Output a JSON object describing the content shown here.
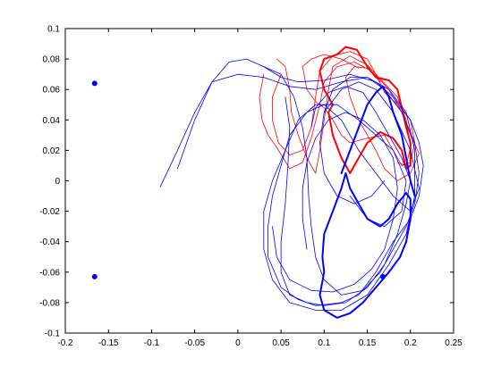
{
  "chart_data": {
    "type": "line",
    "title": "",
    "xlabel": "",
    "ylabel": "",
    "xlim": [
      -0.2,
      0.25
    ],
    "ylim": [
      -0.1,
      0.1
    ],
    "grid": false,
    "xticks": [
      "-0.2",
      "-0.15",
      "-0.1",
      "-0.05",
      "0",
      "0.05",
      "0.1",
      "0.15",
      "0.2",
      "0.25"
    ],
    "yticks": [
      "0.1",
      "0.08",
      "0.06",
      "0.04",
      "0.02",
      "0",
      "-0.02",
      "-0.04",
      "-0.06",
      "-0.08",
      "-0.1"
    ],
    "colors": {
      "blue": "#0000ff",
      "red": "#ff0000",
      "axis": "#000000"
    },
    "points": [
      {
        "x": -0.166,
        "y": 0.064,
        "color": "blue"
      },
      {
        "x": -0.166,
        "y": -0.063,
        "color": "blue"
      },
      {
        "x": 0.168,
        "y": -0.063,
        "color": "blue"
      }
    ],
    "series": [
      {
        "color": "red",
        "width": 0.8,
        "values": [
          [
            0.05,
            0.07
          ],
          [
            0.04,
            0.055
          ],
          [
            0.04,
            0.04
          ],
          [
            0.047,
            0.025
          ],
          [
            0.06,
            0.017
          ],
          [
            0.075,
            0.02
          ],
          [
            0.085,
            0.035
          ],
          [
            0.09,
            0.055
          ],
          [
            0.095,
            0.072
          ],
          [
            0.11,
            0.082
          ],
          [
            0.13,
            0.085
          ],
          [
            0.15,
            0.08
          ],
          [
            0.16,
            0.07
          ],
          [
            0.17,
            0.058
          ],
          [
            0.185,
            0.05
          ],
          [
            0.2,
            0.04
          ],
          [
            0.205,
            0.025
          ],
          [
            0.2,
            0.012
          ],
          [
            0.19,
            0.01
          ],
          [
            0.18,
            0.02
          ],
          [
            0.17,
            0.03
          ],
          [
            0.15,
            0.028
          ],
          [
            0.13,
            0.025
          ],
          [
            0.12,
            0.03
          ],
          [
            0.11,
            0.04
          ],
          [
            0.1,
            0.048
          ],
          [
            0.09,
            0.052
          ],
          [
            0.08,
            0.06
          ],
          [
            0.075,
            0.075
          ],
          [
            0.085,
            0.08
          ],
          [
            0.1,
            0.083
          ],
          [
            0.12,
            0.08
          ],
          [
            0.14,
            0.074
          ]
        ]
      },
      {
        "color": "red",
        "width": 0.8,
        "values": [
          [
            0.03,
            0.07
          ],
          [
            0.025,
            0.055
          ],
          [
            0.028,
            0.04
          ],
          [
            0.035,
            0.03
          ],
          [
            0.045,
            0.022
          ],
          [
            0.06,
            0.008
          ],
          [
            0.075,
            0.012
          ],
          [
            0.085,
            0.028
          ],
          [
            0.095,
            0.05
          ],
          [
            0.1,
            0.065
          ],
          [
            0.115,
            0.075
          ],
          [
            0.135,
            0.078
          ],
          [
            0.155,
            0.072
          ],
          [
            0.175,
            0.06
          ],
          [
            0.19,
            0.045
          ],
          [
            0.2,
            0.03
          ],
          [
            0.21,
            0.018
          ],
          [
            0.2,
            0.005
          ],
          [
            0.185,
            0.0
          ],
          [
            0.17,
            0.008
          ],
          [
            0.16,
            0.02
          ],
          [
            0.15,
            0.03
          ],
          [
            0.14,
            0.04
          ],
          [
            0.13,
            0.055
          ],
          [
            0.125,
            0.068
          ],
          [
            0.135,
            0.075
          ],
          [
            0.15,
            0.074
          ],
          [
            0.165,
            0.065
          ]
        ]
      },
      {
        "color": "red",
        "width": 0.8,
        "values": [
          [
            0.045,
            0.08
          ],
          [
            0.055,
            0.075
          ],
          [
            0.06,
            0.06
          ],
          [
            0.062,
            0.045
          ],
          [
            0.07,
            0.03
          ],
          [
            0.08,
            0.015
          ],
          [
            0.09,
            0.005
          ],
          [
            0.095,
            0.02
          ],
          [
            0.1,
            0.04
          ],
          [
            0.105,
            0.06
          ],
          [
            0.11,
            0.075
          ],
          [
            0.13,
            0.082
          ],
          [
            0.15,
            0.076
          ],
          [
            0.17,
            0.064
          ],
          [
            0.185,
            0.055
          ],
          [
            0.195,
            0.04
          ],
          [
            0.2,
            0.022
          ],
          [
            0.195,
            0.01
          ],
          [
            0.185,
            0.012
          ]
        ]
      },
      {
        "color": "red",
        "width": 2,
        "values": [
          [
            0.11,
            0.05
          ],
          [
            0.1,
            0.06
          ],
          [
            0.095,
            0.072
          ],
          [
            0.1,
            0.08
          ],
          [
            0.115,
            0.083
          ],
          [
            0.125,
            0.088
          ],
          [
            0.138,
            0.086
          ],
          [
            0.15,
            0.075
          ],
          [
            0.16,
            0.068
          ],
          [
            0.175,
            0.066
          ],
          [
            0.185,
            0.06
          ],
          [
            0.19,
            0.048
          ],
          [
            0.195,
            0.035
          ],
          [
            0.2,
            0.025
          ],
          [
            0.2,
            0.01
          ],
          [
            0.195,
            0.008
          ],
          [
            0.19,
            0.02
          ],
          [
            0.18,
            0.028
          ],
          [
            0.165,
            0.032
          ],
          [
            0.15,
            0.025
          ],
          [
            0.14,
            0.015
          ],
          [
            0.13,
            0.005
          ],
          [
            0.12,
            0.015
          ],
          [
            0.11,
            0.03
          ],
          [
            0.105,
            0.045
          ],
          [
            0.11,
            0.05
          ]
        ]
      },
      {
        "color": "blue",
        "width": 0.8,
        "values": [
          [
            -0.07,
            0.008
          ],
          [
            -0.05,
            0.04
          ],
          [
            -0.03,
            0.065
          ],
          [
            -0.01,
            0.078
          ],
          [
            0.01,
            0.08
          ],
          [
            0.03,
            0.075
          ],
          [
            0.05,
            0.068
          ],
          [
            0.07,
            0.065
          ],
          [
            0.1,
            0.066
          ],
          [
            0.13,
            0.07
          ],
          [
            0.16,
            0.065
          ],
          [
            0.18,
            0.055
          ],
          [
            0.2,
            0.04
          ],
          [
            0.21,
            0.025
          ],
          [
            0.215,
            0.01
          ],
          [
            0.21,
            -0.01
          ],
          [
            0.2,
            -0.025
          ],
          [
            0.18,
            -0.04
          ],
          [
            0.16,
            -0.06
          ],
          [
            0.14,
            -0.075
          ],
          [
            0.12,
            -0.08
          ],
          [
            0.09,
            -0.082
          ],
          [
            0.07,
            -0.078
          ],
          [
            0.05,
            -0.07
          ],
          [
            0.035,
            -0.05
          ],
          [
            0.035,
            -0.03
          ],
          [
            0.04,
            -0.01
          ],
          [
            0.05,
            0.01
          ],
          [
            0.06,
            0.03
          ],
          [
            0.08,
            0.045
          ],
          [
            0.1,
            0.05
          ],
          [
            0.12,
            0.04
          ],
          [
            0.14,
            0.02
          ],
          [
            0.16,
            0.005
          ],
          [
            0.18,
            -0.01
          ],
          [
            0.2,
            -0.02
          ],
          [
            0.21,
            -0.005
          ],
          [
            0.2,
            0.02
          ],
          [
            0.18,
            0.045
          ],
          [
            0.16,
            0.06
          ],
          [
            0.14,
            0.065
          ],
          [
            0.12,
            0.06
          ],
          [
            0.1,
            0.045
          ]
        ]
      },
      {
        "color": "blue",
        "width": 0.8,
        "values": [
          [
            -0.09,
            -0.004
          ],
          [
            -0.07,
            0.02
          ],
          [
            -0.05,
            0.045
          ],
          [
            -0.03,
            0.065
          ],
          [
            0.0,
            0.07
          ],
          [
            0.03,
            0.068
          ],
          [
            0.06,
            0.062
          ],
          [
            0.09,
            0.06
          ],
          [
            0.12,
            0.065
          ],
          [
            0.15,
            0.068
          ],
          [
            0.175,
            0.06
          ],
          [
            0.195,
            0.045
          ],
          [
            0.205,
            0.02
          ],
          [
            0.205,
            -0.01
          ],
          [
            0.195,
            -0.035
          ],
          [
            0.175,
            -0.055
          ],
          [
            0.15,
            -0.075
          ],
          [
            0.12,
            -0.085
          ],
          [
            0.09,
            -0.085
          ],
          [
            0.06,
            -0.08
          ],
          [
            0.04,
            -0.065
          ],
          [
            0.03,
            -0.045
          ],
          [
            0.03,
            -0.02
          ],
          [
            0.04,
            0.0
          ],
          [
            0.055,
            0.02
          ],
          [
            0.07,
            0.04
          ],
          [
            0.09,
            0.05
          ],
          [
            0.115,
            0.05
          ],
          [
            0.14,
            0.04
          ],
          [
            0.16,
            0.03
          ],
          [
            0.18,
            0.02
          ],
          [
            0.195,
            0.0
          ],
          [
            0.19,
            -0.02
          ],
          [
            0.17,
            -0.03
          ],
          [
            0.15,
            -0.025
          ],
          [
            0.13,
            -0.01
          ]
        ]
      },
      {
        "color": "blue",
        "width": 0.8,
        "values": [
          [
            0.03,
            0.075
          ],
          [
            0.05,
            0.07
          ],
          [
            0.065,
            0.055
          ],
          [
            0.075,
            0.035
          ],
          [
            0.08,
            0.015
          ],
          [
            0.082,
            -0.01
          ],
          [
            0.085,
            -0.03
          ],
          [
            0.09,
            -0.05
          ],
          [
            0.1,
            -0.065
          ],
          [
            0.12,
            -0.075
          ],
          [
            0.145,
            -0.072
          ],
          [
            0.165,
            -0.06
          ],
          [
            0.18,
            -0.045
          ],
          [
            0.195,
            -0.03
          ],
          [
            0.205,
            -0.015
          ],
          [
            0.21,
            0.005
          ],
          [
            0.205,
            0.025
          ],
          [
            0.19,
            0.045
          ],
          [
            0.17,
            0.06
          ],
          [
            0.15,
            0.068
          ],
          [
            0.13,
            0.068
          ],
          [
            0.11,
            0.06
          ],
          [
            0.1,
            0.045
          ],
          [
            0.095,
            0.025
          ],
          [
            0.1,
            0.005
          ],
          [
            0.115,
            -0.01
          ],
          [
            0.135,
            -0.015
          ],
          [
            0.155,
            -0.01
          ],
          [
            0.17,
            0.0
          ]
        ]
      },
      {
        "color": "blue",
        "width": 0.8,
        "values": [
          [
            0.055,
            0.055
          ],
          [
            0.06,
            0.035
          ],
          [
            0.058,
            0.01
          ],
          [
            0.055,
            -0.015
          ],
          [
            0.05,
            -0.04
          ],
          [
            0.05,
            -0.06
          ],
          [
            0.06,
            -0.075
          ],
          [
            0.08,
            -0.08
          ],
          [
            0.1,
            -0.082
          ],
          [
            0.125,
            -0.08
          ],
          [
            0.15,
            -0.07
          ],
          [
            0.17,
            -0.055
          ],
          [
            0.185,
            -0.035
          ],
          [
            0.195,
            -0.015
          ],
          [
            0.2,
            0.0
          ],
          [
            0.19,
            0.015
          ],
          [
            0.175,
            0.03
          ],
          [
            0.16,
            0.045
          ],
          [
            0.145,
            0.058
          ],
          [
            0.125,
            0.062
          ],
          [
            0.105,
            0.058
          ],
          [
            0.09,
            0.048
          ],
          [
            0.085,
            0.035
          ]
        ]
      },
      {
        "color": "blue",
        "width": 0.8,
        "values": [
          [
            0.04,
            -0.03
          ],
          [
            0.045,
            -0.05
          ],
          [
            0.06,
            -0.065
          ],
          [
            0.085,
            -0.072
          ],
          [
            0.11,
            -0.073
          ],
          [
            0.135,
            -0.068
          ],
          [
            0.155,
            -0.058
          ],
          [
            0.17,
            -0.045
          ],
          [
            0.18,
            -0.025
          ],
          [
            0.185,
            -0.005
          ],
          [
            0.18,
            0.015
          ],
          [
            0.165,
            0.03
          ],
          [
            0.145,
            0.04
          ],
          [
            0.125,
            0.045
          ],
          [
            0.105,
            0.04
          ],
          [
            0.09,
            0.028
          ],
          [
            0.08,
            0.012
          ],
          [
            0.075,
            -0.005
          ],
          [
            0.075,
            -0.025
          ],
          [
            0.08,
            -0.045
          ]
        ]
      },
      {
        "color": "blue",
        "width": 2,
        "values": [
          [
            0.1,
            -0.06
          ],
          [
            0.095,
            -0.075
          ],
          [
            0.1,
            -0.085
          ],
          [
            0.115,
            -0.09
          ],
          [
            0.13,
            -0.087
          ],
          [
            0.145,
            -0.08
          ],
          [
            0.16,
            -0.07
          ],
          [
            0.175,
            -0.06
          ],
          [
            0.188,
            -0.05
          ],
          [
            0.195,
            -0.04
          ],
          [
            0.2,
            -0.025
          ],
          [
            0.2,
            -0.012
          ],
          [
            0.195,
            -0.008
          ],
          [
            0.185,
            -0.015
          ],
          [
            0.175,
            -0.025
          ],
          [
            0.165,
            -0.03
          ],
          [
            0.15,
            -0.025
          ],
          [
            0.14,
            -0.015
          ],
          [
            0.13,
            -0.005
          ],
          [
            0.125,
            0.005
          ],
          [
            0.12,
            -0.005
          ],
          [
            0.11,
            -0.02
          ],
          [
            0.1,
            -0.035
          ],
          [
            0.098,
            -0.05
          ],
          [
            0.1,
            -0.06
          ]
        ]
      },
      {
        "color": "blue",
        "width": 2,
        "values": [
          [
            0.12,
            0.005
          ],
          [
            0.13,
            0.02
          ],
          [
            0.14,
            0.035
          ],
          [
            0.15,
            0.05
          ],
          [
            0.16,
            0.058
          ],
          [
            0.168,
            0.062
          ],
          [
            0.175,
            0.055
          ],
          [
            0.18,
            0.045
          ],
          [
            0.19,
            0.03
          ],
          [
            0.195,
            0.015
          ],
          [
            0.2,
            0.0
          ],
          [
            0.205,
            -0.01
          ]
        ]
      }
    ]
  }
}
